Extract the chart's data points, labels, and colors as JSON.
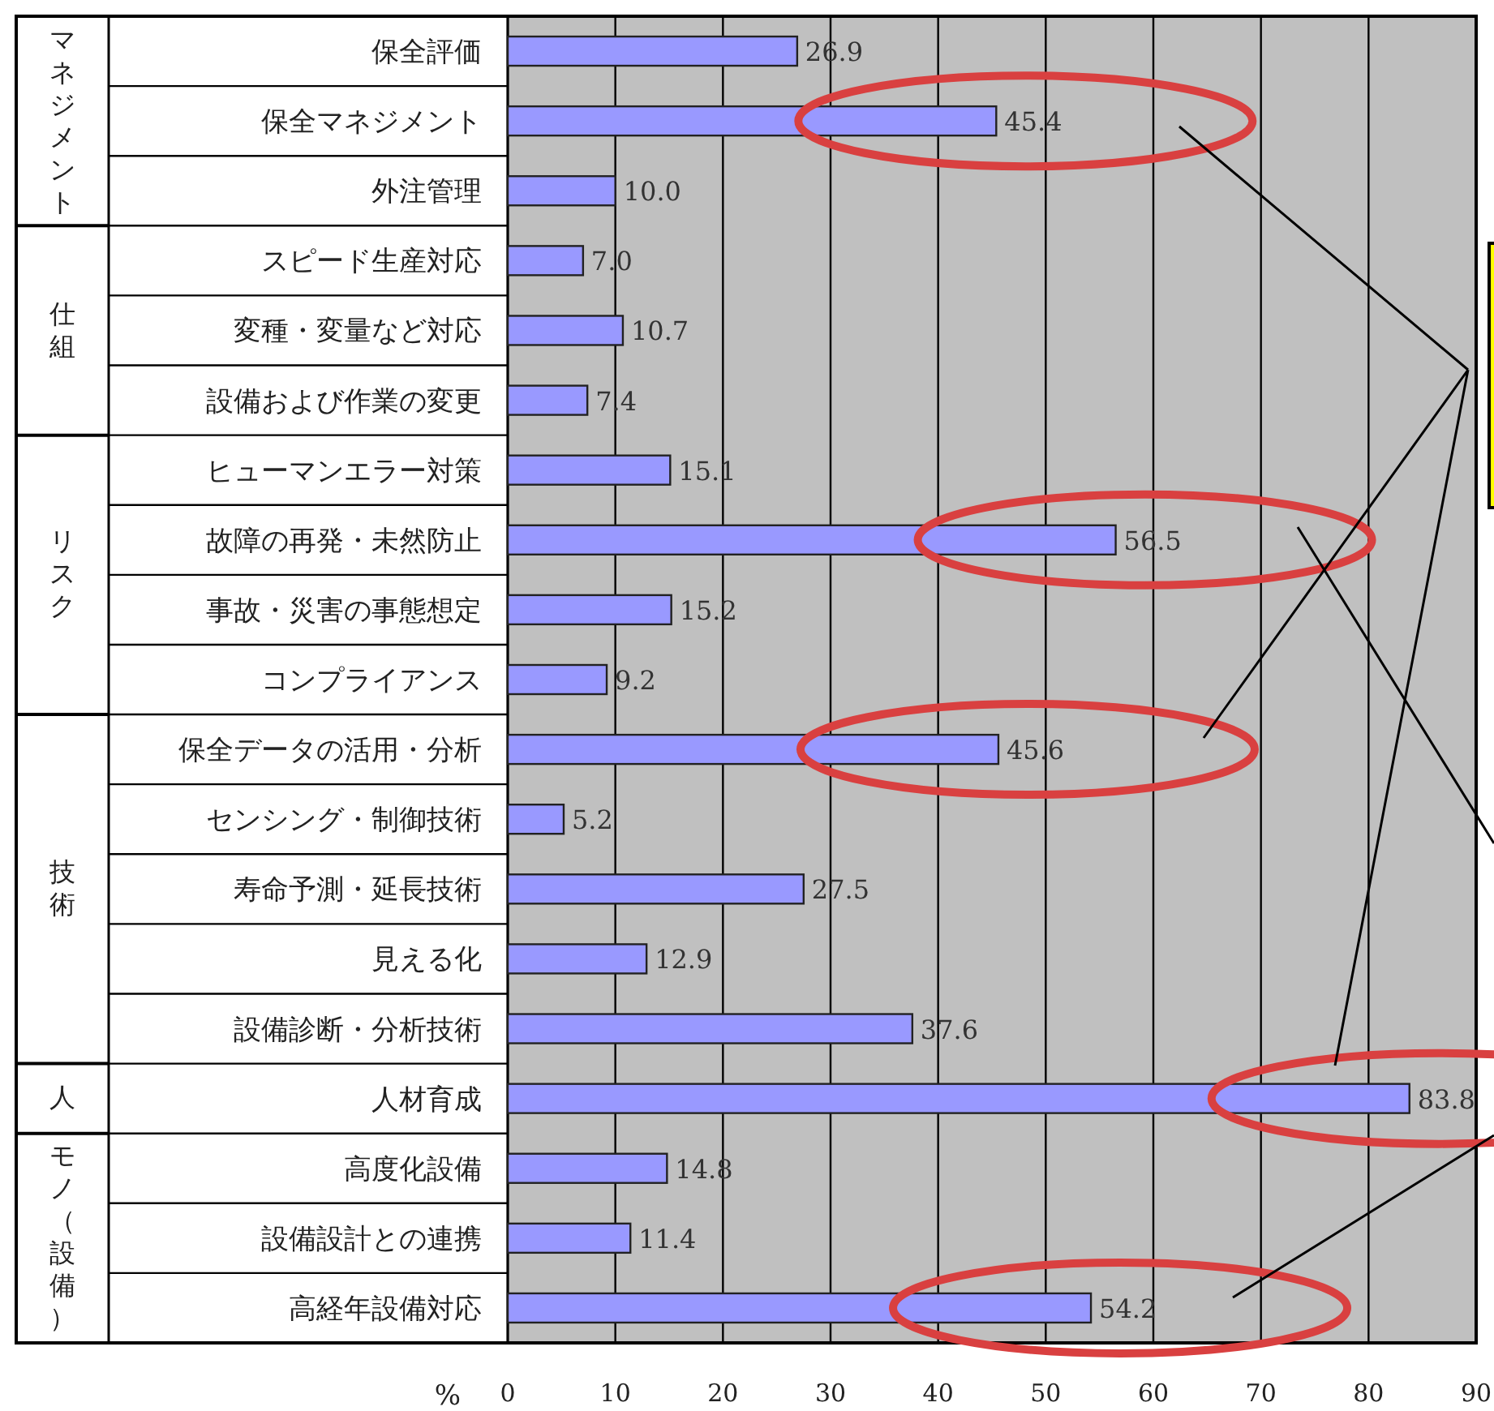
{
  "chart_data": {
    "type": "bar",
    "orientation": "horizontal",
    "categories": [
      "保全評価",
      "保全マネジメント",
      "外注管理",
      "スピード生産対応",
      "変種・変量など対応",
      "設備および作業の変更",
      "ヒューマンエラー対策",
      "故障の再発・未然防止",
      "事故・災害の事態想定",
      "コンプライアンス",
      "保全データの活用・分析",
      "センシング・制御技術",
      "寿命予測・延長技術",
      "見える化",
      "設備診断・分析技術",
      "人材育成",
      "高度化設備",
      "設備設計との連携",
      "高経年設備対応"
    ],
    "values": [
      26.9,
      45.4,
      10.0,
      7.0,
      10.7,
      7.4,
      15.1,
      56.5,
      15.2,
      9.2,
      45.6,
      5.2,
      27.5,
      12.9,
      37.6,
      83.8,
      14.8,
      11.4,
      54.2
    ],
    "value_labels": [
      "26.9",
      "45.4",
      "10.0",
      "7.0",
      "10.7",
      "7.4",
      "15.1",
      "56.5",
      "15.2",
      "9.2",
      "45.6",
      "5.2",
      "27.5",
      "12.9",
      "37.6",
      "83.8",
      "14.8",
      "11.4",
      "54.2"
    ],
    "color": "#9999ff",
    "xlabel": "%",
    "xlim": [
      0,
      90
    ],
    "xticks": [
      0,
      10,
      20,
      30,
      40,
      50,
      60,
      70,
      80,
      90
    ],
    "grid": "x",
    "annotations": [
      "マネジメント",
      "仕組",
      "リスク",
      "技術",
      "人",
      "モノ（設備）"
    ]
  }
}
